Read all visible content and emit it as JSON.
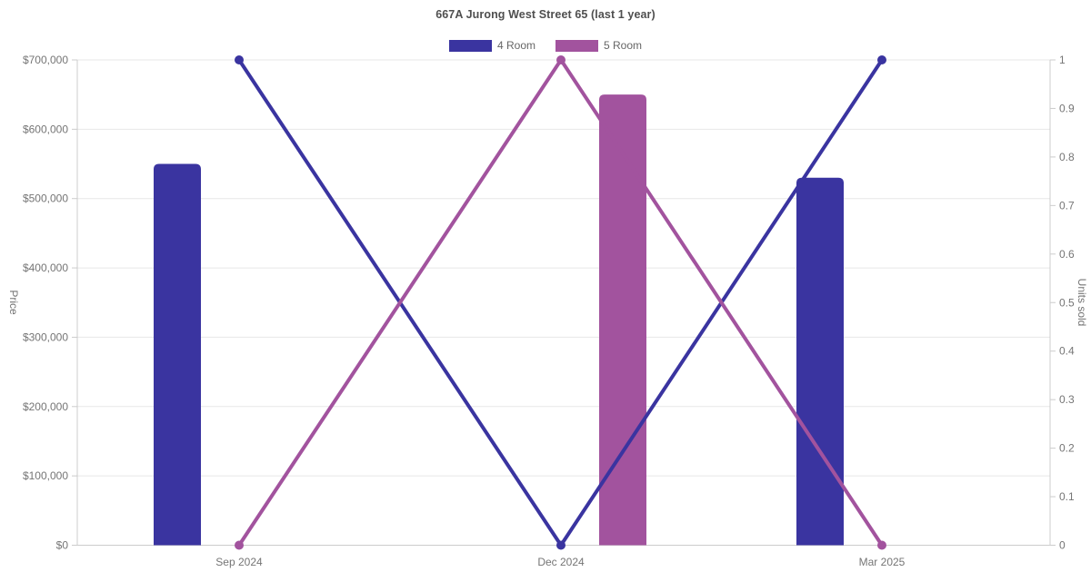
{
  "chart_data": {
    "type": "bar+line dual-axis",
    "title": "667A Jurong West Street 65 (last 1 year)",
    "categories": [
      "Sep 2024",
      "Dec 2024",
      "Mar 2025"
    ],
    "left_axis": {
      "label": "Price",
      "min": 0,
      "max": 700000,
      "tick_step": 100000,
      "tick_labels": [
        "$0",
        "$100,000",
        "$200,000",
        "$300,000",
        "$400,000",
        "$500,000",
        "$600,000",
        "$700,000"
      ]
    },
    "right_axis": {
      "label": "Units sold",
      "min": 0,
      "max": 1,
      "tick_step": 0.1,
      "tick_labels": [
        "0",
        "0.1",
        "0.2",
        "0.3",
        "0.4",
        "0.5",
        "0.6",
        "0.7",
        "0.8",
        "0.9",
        "1"
      ]
    },
    "series": [
      {
        "name": "4 Room",
        "color": "#3a34a0",
        "bar_values_price": [
          550000,
          null,
          530000
        ],
        "line_values_units_sold": [
          1,
          0,
          1
        ]
      },
      {
        "name": "5 Room",
        "color": "#a2539e",
        "bar_values_price": [
          null,
          650000,
          null
        ],
        "line_values_units_sold": [
          0,
          1,
          0
        ]
      }
    ],
    "grid": true,
    "legend_position": "top"
  },
  "colors": {
    "background": "#ffffff",
    "grid": "#e7e7e7",
    "axis": "#cccccc",
    "tick_text": "#757575",
    "title_text": "#4f4f4f",
    "legend_text": "#666666"
  }
}
